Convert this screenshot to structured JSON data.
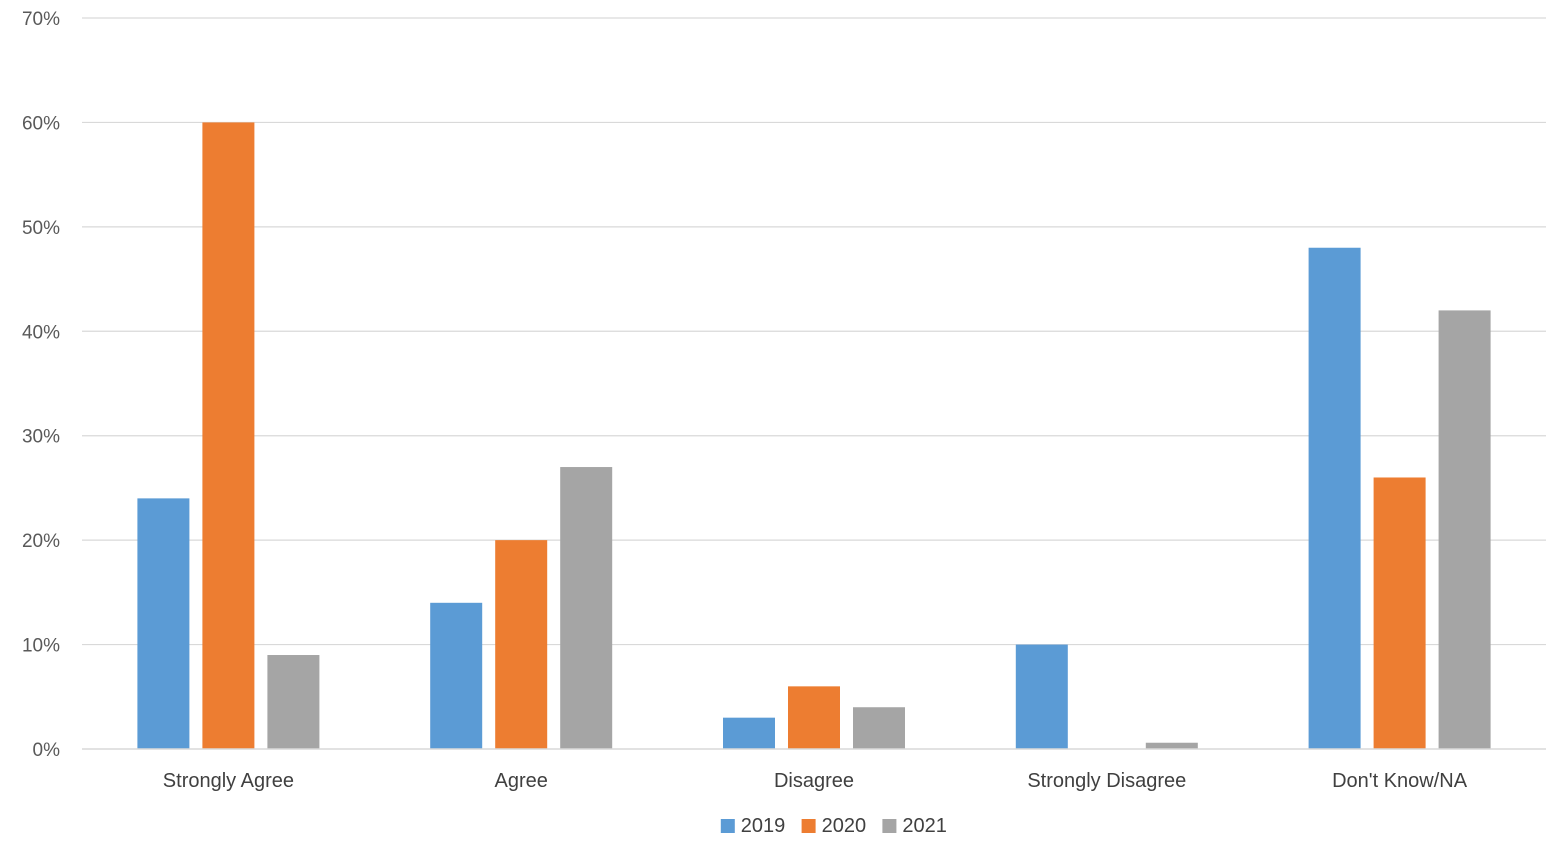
{
  "chart_data": {
    "type": "bar",
    "categories": [
      "Strongly Agree",
      "Agree",
      "Disagree",
      "Strongly Disagree",
      "Don't Know/NA"
    ],
    "series": [
      {
        "name": "2019",
        "color": "#5B9BD5",
        "values": [
          24,
          14,
          3,
          10,
          48
        ]
      },
      {
        "name": "2020",
        "color": "#ED7D31",
        "values": [
          60,
          20,
          6,
          0,
          26
        ]
      },
      {
        "name": "2021",
        "color": "#A5A5A5",
        "values": [
          9,
          27,
          4,
          0.6,
          42
        ]
      }
    ],
    "ylim": [
      0,
      70
    ],
    "yticks": [
      0,
      10,
      20,
      30,
      40,
      50,
      60,
      70
    ],
    "ytick_labels": [
      "0%",
      "10%",
      "20%",
      "30%",
      "40%",
      "50%",
      "60%",
      "70%"
    ],
    "grid": true,
    "legend": "bottom-center",
    "title": "",
    "xlabel": "",
    "ylabel": ""
  }
}
